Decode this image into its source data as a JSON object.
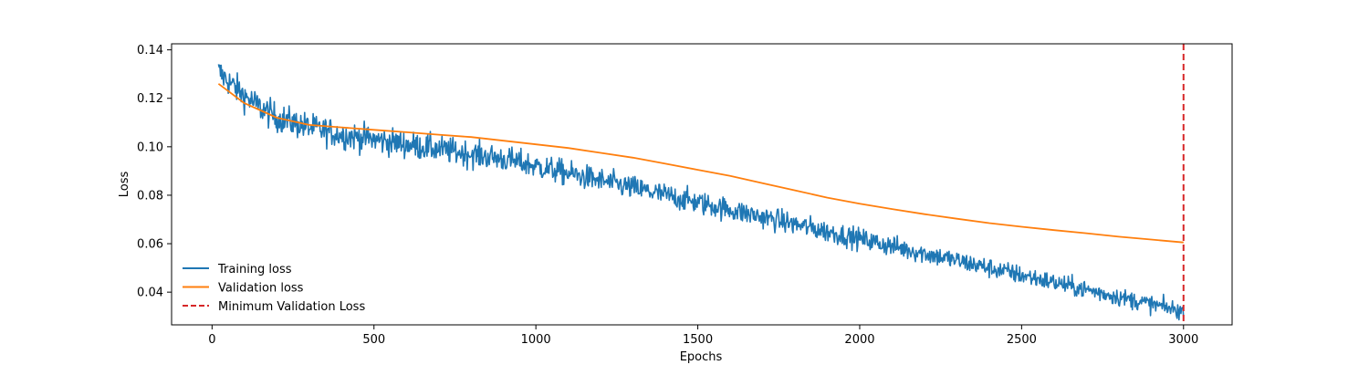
{
  "chart_data": {
    "type": "line",
    "title": "",
    "xlabel": "Epochs",
    "ylabel": "Loss",
    "xlim": [
      -125,
      3150
    ],
    "ylim": [
      0.0265,
      0.1425
    ],
    "xticks": [
      0,
      500,
      1000,
      1500,
      2000,
      2500,
      3000
    ],
    "xtick_labels": [
      "0",
      "500",
      "1000",
      "1500",
      "2000",
      "2500",
      "3000"
    ],
    "yticks": [
      0.04,
      0.06,
      0.08,
      0.1,
      0.12,
      0.14
    ],
    "ytick_labels": [
      "0.04",
      "0.06",
      "0.08",
      "0.10",
      "0.12",
      "0.14"
    ],
    "grid": false,
    "legend_position": "lower-left",
    "series": [
      {
        "name": "Training loss",
        "color": "#1f77b4",
        "style": "solid",
        "x": [
          20,
          50,
          100,
          150,
          200,
          250,
          300,
          400,
          500,
          600,
          700,
          800,
          900,
          1000,
          1100,
          1200,
          1300,
          1400,
          1500,
          1600,
          1700,
          1800,
          1900,
          2000,
          2100,
          2200,
          2300,
          2400,
          2500,
          2600,
          2700,
          2800,
          2900,
          3000
        ],
        "values": [
          0.131,
          0.127,
          0.121,
          0.116,
          0.112,
          0.11,
          0.108,
          0.105,
          0.103,
          0.101,
          0.099,
          0.097,
          0.095,
          0.092,
          0.089,
          0.086,
          0.083,
          0.08,
          0.077,
          0.074,
          0.071,
          0.068,
          0.065,
          0.062,
          0.059,
          0.056,
          0.053,
          0.05,
          0.047,
          0.044,
          0.041,
          0.038,
          0.035,
          0.032
        ]
      },
      {
        "name": "Validation loss",
        "color": "#ff7f0e",
        "style": "solid",
        "x": [
          20,
          50,
          100,
          150,
          200,
          250,
          300,
          400,
          500,
          600,
          700,
          800,
          900,
          1000,
          1100,
          1200,
          1300,
          1400,
          1500,
          1600,
          1700,
          1800,
          1900,
          2000,
          2100,
          2200,
          2300,
          2400,
          2500,
          2600,
          2700,
          2800,
          2900,
          3000
        ],
        "values": [
          0.126,
          0.123,
          0.118,
          0.115,
          0.112,
          0.1105,
          0.109,
          0.108,
          0.107,
          0.106,
          0.105,
          0.104,
          0.1025,
          0.101,
          0.0995,
          0.0975,
          0.0955,
          0.093,
          0.0905,
          0.088,
          0.085,
          0.082,
          0.079,
          0.0765,
          0.0743,
          0.0722,
          0.0703,
          0.0685,
          0.067,
          0.0656,
          0.0643,
          0.0629,
          0.0617,
          0.0605
        ]
      }
    ],
    "vlines": [
      {
        "name": "Minimum Validation Loss",
        "x": 3000,
        "color": "#d62728",
        "style": "dashed"
      }
    ]
  }
}
